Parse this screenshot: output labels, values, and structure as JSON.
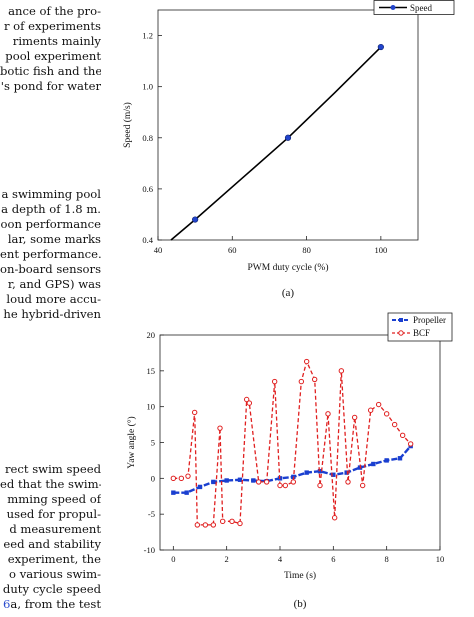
{
  "text_blocks": [
    {
      "lines": [
        "ance of the pro-",
        "r of experiments",
        "riments mainly",
        "pool experiment",
        "botic fish and the",
        "'s pond for water"
      ]
    },
    {
      "lines": [
        "a swimming pool",
        "a depth of 1.8 m.",
        "oon performance",
        "lar, some marks",
        "ent performance.",
        "on-board sensors",
        "r, and GPS) was",
        "loud more accu-",
        "he hybrid-driven"
      ]
    },
    {
      "lines": [
        "rect swim speed",
        "ed that the swim-",
        "mming speed of",
        "used for propul-",
        "d measurement",
        "eed and stability",
        " experiment, the",
        "o various swim-",
        "duty cycle speed"
      ],
      "last_line": {
        "ref": "6",
        "rest": "a, from the test"
      }
    }
  ],
  "colors": {
    "speed_line": "#000000",
    "speed_marker": "#2244cc",
    "propeller": "#1a3fd0",
    "bcf": "#e02020"
  },
  "chart_data": [
    {
      "type": "line",
      "panel_label": "(a)",
      "xlabel": "PWM duty cycle (%)",
      "ylabel": "Speed (m/s)",
      "xlim": [
        40,
        110
      ],
      "ylim": [
        0.4,
        1.3
      ],
      "xticks": [
        40,
        60,
        80,
        100
      ],
      "yticks": [
        0.4,
        0.6,
        0.8,
        1.0,
        1.2
      ],
      "yticklabels": [
        "0.4",
        "0.6",
        "0.8",
        "1.0",
        "1.2"
      ],
      "legend_position": "top-right",
      "series": [
        {
          "name": "Speed",
          "x": [
            50,
            75,
            100
          ],
          "y": [
            0.48,
            0.8,
            1.155
          ]
        }
      ],
      "fit_line": {
        "x": [
          43.5,
          50,
          62.5,
          75,
          87.5,
          100
        ],
        "y": [
          0.4,
          0.48,
          0.64,
          0.8,
          0.975,
          1.155
        ]
      }
    },
    {
      "type": "line",
      "panel_label": "(b)",
      "xlabel": "Time (s)",
      "ylabel": "Yaw angle (°)",
      "xlim": [
        -0.5,
        10
      ],
      "ylim": [
        -10,
        20
      ],
      "xticks": [
        0,
        2,
        4,
        6,
        8,
        10
      ],
      "yticks": [
        -10,
        -5,
        0,
        5,
        10,
        15,
        20
      ],
      "legend_position": "top-right",
      "series": [
        {
          "name": "Propeller",
          "x": [
            0,
            0.5,
            1,
            1.5,
            2,
            2.5,
            3,
            3.5,
            4,
            4.5,
            5,
            5.5,
            6,
            6.5,
            7,
            7.5,
            8,
            8.5,
            8.9
          ],
          "y": [
            -2,
            -2,
            -1.2,
            -0.5,
            -0.3,
            -0.2,
            -0.3,
            -0.4,
            0,
            0.2,
            0.8,
            1,
            0.5,
            0.8,
            1.5,
            2,
            2.5,
            2.8,
            4.5
          ]
        },
        {
          "name": "BCF",
          "x": [
            0,
            0.3,
            0.55,
            0.8,
            0.9,
            1.2,
            1.5,
            1.75,
            1.85,
            2.2,
            2.5,
            2.75,
            2.85,
            3.2,
            3.5,
            3.8,
            4.0,
            4.2,
            4.5,
            4.8,
            5.0,
            5.3,
            5.5,
            5.8,
            6.05,
            6.3,
            6.55,
            6.8,
            7.1,
            7.4,
            7.7,
            8.0,
            8.3,
            8.6,
            8.9
          ],
          "y": [
            0,
            0,
            0.3,
            9.2,
            -6.5,
            -6.5,
            -6.5,
            7,
            -6,
            -6,
            -6.3,
            11,
            10.5,
            -0.5,
            -0.5,
            13.5,
            -1,
            -1,
            -0.5,
            13.5,
            16.3,
            13.8,
            -1,
            9,
            -5.5,
            15,
            -0.5,
            8.5,
            -1,
            9.5,
            10.3,
            9,
            7.5,
            6,
            4.8
          ]
        }
      ]
    }
  ]
}
